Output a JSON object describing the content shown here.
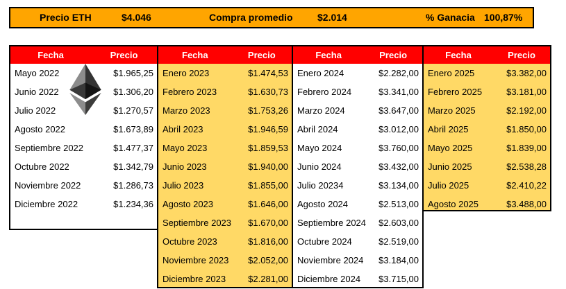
{
  "summary_bar": {
    "precio_eth_label": "Precio ETH",
    "precio_eth_value": "$4.046",
    "compra_promedio_label": "Compra promedio",
    "compra_promedio_value": "$2.014",
    "ganancia_label": "% Ganacia",
    "ganancia_value": "100,87%"
  },
  "table_header": {
    "fecha": "Fecha",
    "precio": "Precio"
  },
  "tables": [
    {
      "year": "2022",
      "highlighted": false,
      "rows": [
        {
          "fecha": "Mayo 2022",
          "precio": "$1.965,25"
        },
        {
          "fecha": "Junio 2022",
          "precio": "$1.306,20"
        },
        {
          "fecha": "Julio 2022",
          "precio": "$1.270,57"
        },
        {
          "fecha": "Agosto 2022",
          "precio": "$1.673,89"
        },
        {
          "fecha": "Septiembre 2022",
          "precio": "$1.477,37"
        },
        {
          "fecha": "Octubre 2022",
          "precio": "$1.342,79"
        },
        {
          "fecha": "Noviembre 2022",
          "precio": "$1.286,73"
        },
        {
          "fecha": "Diciembre 2022",
          "precio": "$1.234,36"
        }
      ]
    },
    {
      "year": "2023",
      "highlighted": true,
      "rows": [
        {
          "fecha": "Enero 2023",
          "precio": "$1.474,53"
        },
        {
          "fecha": "Febrero 2023",
          "precio": "$1.630,73"
        },
        {
          "fecha": "Marzo 2023",
          "precio": "$1.753,26"
        },
        {
          "fecha": "Abril 2023",
          "precio": "$1.946,59"
        },
        {
          "fecha": "Mayo 2023",
          "precio": "$1.859,53"
        },
        {
          "fecha": "Junio 2023",
          "precio": "$1.940,00"
        },
        {
          "fecha": "Julio 2023",
          "precio": "$1.855,00"
        },
        {
          "fecha": "Agosto 2023",
          "precio": "$1.646,00"
        },
        {
          "fecha": "Septiembre 2023",
          "precio": "$1.670,00"
        },
        {
          "fecha": "Octubre 2023",
          "precio": "$1.816,00"
        },
        {
          "fecha": "Noviembre 2023",
          "precio": "$2.052,00"
        },
        {
          "fecha": "Diciembre 2023",
          "precio": "$2.281,00"
        }
      ]
    },
    {
      "year": "2024",
      "highlighted": false,
      "rows": [
        {
          "fecha": "Enero 2024",
          "precio": "$2.282,00"
        },
        {
          "fecha": "Febrero 2024",
          "precio": "$3.341,00"
        },
        {
          "fecha": "Marzo 2024",
          "precio": "$3.647,00"
        },
        {
          "fecha": "Abril 2024",
          "precio": "$3.012,00"
        },
        {
          "fecha": "Mayo 2024",
          "precio": "$3.760,00"
        },
        {
          "fecha": "Junio 2024",
          "precio": "$3.432,00"
        },
        {
          "fecha": "Julio 20234",
          "precio": "$3.134,00"
        },
        {
          "fecha": "Agosto 2024",
          "precio": "$2.513,00"
        },
        {
          "fecha": "Septiembre 2024",
          "precio": "$2.603,00"
        },
        {
          "fecha": "Octubre 2024",
          "precio": "$2.519,00"
        },
        {
          "fecha": "Noviembre 2024",
          "precio": "$3.184,00"
        },
        {
          "fecha": "Diciembre 2024",
          "precio": "$3.715,00"
        }
      ]
    },
    {
      "year": "2025",
      "highlighted": true,
      "rows": [
        {
          "fecha": "Enero 2025",
          "precio": "$3.382,00"
        },
        {
          "fecha": "Febrero 2025",
          "precio": "$3.181,00"
        },
        {
          "fecha": "Marzo 2025",
          "precio": "$2.192,00"
        },
        {
          "fecha": "Abril 2025",
          "precio": "$1.850,00"
        },
        {
          "fecha": "Mayo 2025",
          "precio": "$1.839,00"
        },
        {
          "fecha": "Junio 2025",
          "precio": "$2.538,28"
        },
        {
          "fecha": "Julio 2025",
          "precio": "$2.410,22"
        },
        {
          "fecha": "Agosto 2025",
          "precio": "$3.488,00"
        }
      ]
    }
  ],
  "icon": {
    "name": "ethereum-logo"
  },
  "colors": {
    "summary_bar_bg": "#FFA500",
    "table_header_bg": "#FF0000",
    "table_header_text": "#FFFFFF",
    "highlight_bg": "#FFD966",
    "border": "#000000"
  }
}
